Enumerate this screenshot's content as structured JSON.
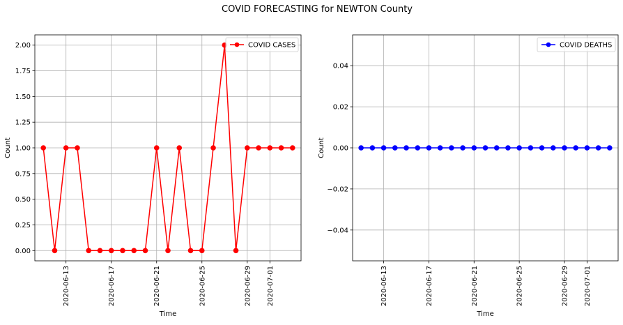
{
  "figure": {
    "suptitle": "COVID FORECASTING for NEWTON County"
  },
  "chart_data": [
    {
      "type": "line",
      "title": "",
      "xlabel": "Time",
      "ylabel": "Count",
      "x": [
        "2020-06-11",
        "2020-06-12",
        "2020-06-13",
        "2020-06-14",
        "2020-06-15",
        "2020-06-16",
        "2020-06-17",
        "2020-06-18",
        "2020-06-19",
        "2020-06-20",
        "2020-06-21",
        "2020-06-22",
        "2020-06-23",
        "2020-06-24",
        "2020-06-25",
        "2020-06-26",
        "2020-06-27",
        "2020-06-28",
        "2020-06-29",
        "2020-06-30",
        "2020-07-01",
        "2020-07-02",
        "2020-07-03"
      ],
      "series": [
        {
          "name": "COVID CASES",
          "color": "#ff0000",
          "values": [
            1,
            0,
            1,
            1,
            0,
            0,
            0,
            0,
            0,
            0,
            1,
            0,
            1,
            0,
            0,
            1,
            2,
            0,
            1,
            1,
            1,
            1,
            1
          ]
        }
      ],
      "xticks": [
        "2020-06-13",
        "2020-06-17",
        "2020-06-21",
        "2020-06-25",
        "2020-06-29",
        "2020-07-01"
      ],
      "yticks": [
        "0.00",
        "0.25",
        "0.50",
        "0.75",
        "1.00",
        "1.25",
        "1.50",
        "1.75",
        "2.00"
      ],
      "ylim": [
        -0.1,
        2.1
      ],
      "grid": true,
      "legend": "top-right"
    },
    {
      "type": "line",
      "title": "",
      "xlabel": "Time",
      "ylabel": "Count",
      "x": [
        "2020-06-11",
        "2020-06-12",
        "2020-06-13",
        "2020-06-14",
        "2020-06-15",
        "2020-06-16",
        "2020-06-17",
        "2020-06-18",
        "2020-06-19",
        "2020-06-20",
        "2020-06-21",
        "2020-06-22",
        "2020-06-23",
        "2020-06-24",
        "2020-06-25",
        "2020-06-26",
        "2020-06-27",
        "2020-06-28",
        "2020-06-29",
        "2020-06-30",
        "2020-07-01",
        "2020-07-02",
        "2020-07-03"
      ],
      "series": [
        {
          "name": "COVID DEATHS",
          "color": "#0000ff",
          "values": [
            0,
            0,
            0,
            0,
            0,
            0,
            0,
            0,
            0,
            0,
            0,
            0,
            0,
            0,
            0,
            0,
            0,
            0,
            0,
            0,
            0,
            0,
            0
          ]
        }
      ],
      "xticks": [
        "2020-06-13",
        "2020-06-17",
        "2020-06-21",
        "2020-06-25",
        "2020-06-29",
        "2020-07-01"
      ],
      "yticks": [
        "−0.04",
        "−0.02",
        "0.00",
        "0.02",
        "0.04"
      ],
      "ylim": [
        -0.055,
        0.055
      ],
      "grid": true,
      "legend": "top-right"
    }
  ]
}
